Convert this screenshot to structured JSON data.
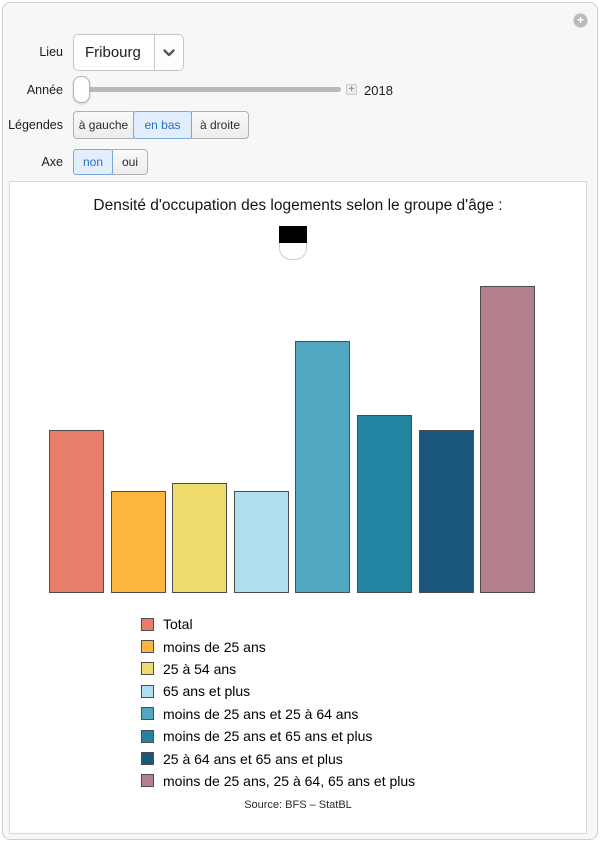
{
  "window": {
    "expand_icon": "plus-circle"
  },
  "controls": {
    "lieu": {
      "label": "Lieu",
      "value": "Fribourg"
    },
    "annee": {
      "label": "Année",
      "value": "2018",
      "stepper_icon": "plus"
    },
    "legendes": {
      "label": "Légendes",
      "options": [
        "à gauche",
        "en bas",
        "à droite"
      ],
      "selected": "en bas"
    },
    "axe": {
      "label": "Axe",
      "options": [
        "non",
        "oui"
      ],
      "selected": "non"
    }
  },
  "ui_colors": {
    "selected_bg": "#e2eefb",
    "selected_border": "#7aa8dd",
    "selected_text": "#2a6fc4",
    "panel_bg": "#f7f7f7"
  },
  "chart_data": {
    "type": "bar",
    "title": "Densité d'occupation des logements selon le groupe d'âge :",
    "badge": {
      "name": "fribourg-coat-of-arms",
      "top_color": "#000000",
      "bottom_color": "#ffffff"
    },
    "categories": [
      "Total",
      "moins de 25 ans",
      "25 à 54 ans",
      "65 ans et plus",
      "moins de 25 ans et 25 à 64 ans",
      "moins de 25 ans et 65 ans et plus",
      "25 à 64 ans et 65 ans et plus",
      "moins de 25 ans, 25 à 64, 65 ans et plus"
    ],
    "series": [
      {
        "label": "Total",
        "color": "#E97D6B",
        "value": 2.2
      },
      {
        "label": "moins de 25 ans",
        "color": "#FCB53F",
        "value": 1.38
      },
      {
        "label": "25 à 54 ans",
        "color": "#F0DB6D",
        "value": 1.48
      },
      {
        "label": "65 ans et plus",
        "color": "#AFDFEC",
        "value": 1.38
      },
      {
        "label": "moins de 25 ans et 25 à 64 ans",
        "color": "#51A7BF",
        "value": 3.4
      },
      {
        "label": "moins de 25 ans et 65 ans et plus",
        "color": "#2284A0",
        "value": 2.4
      },
      {
        "label": "25 à 64 ans et 65 ans et plus",
        "color": "#1A567E",
        "value": 2.2
      },
      {
        "label": "moins de 25 ans, 25 à 64, 65 ans et plus",
        "color": "#B4808E",
        "value": 4.14
      }
    ],
    "bar_edge_color": "#4d4d4d",
    "ylim": [
      0,
      4.3
    ],
    "axes_visible": false,
    "grid": false,
    "legend_position": "bottom",
    "source": "Source: BFS – StatBL"
  }
}
